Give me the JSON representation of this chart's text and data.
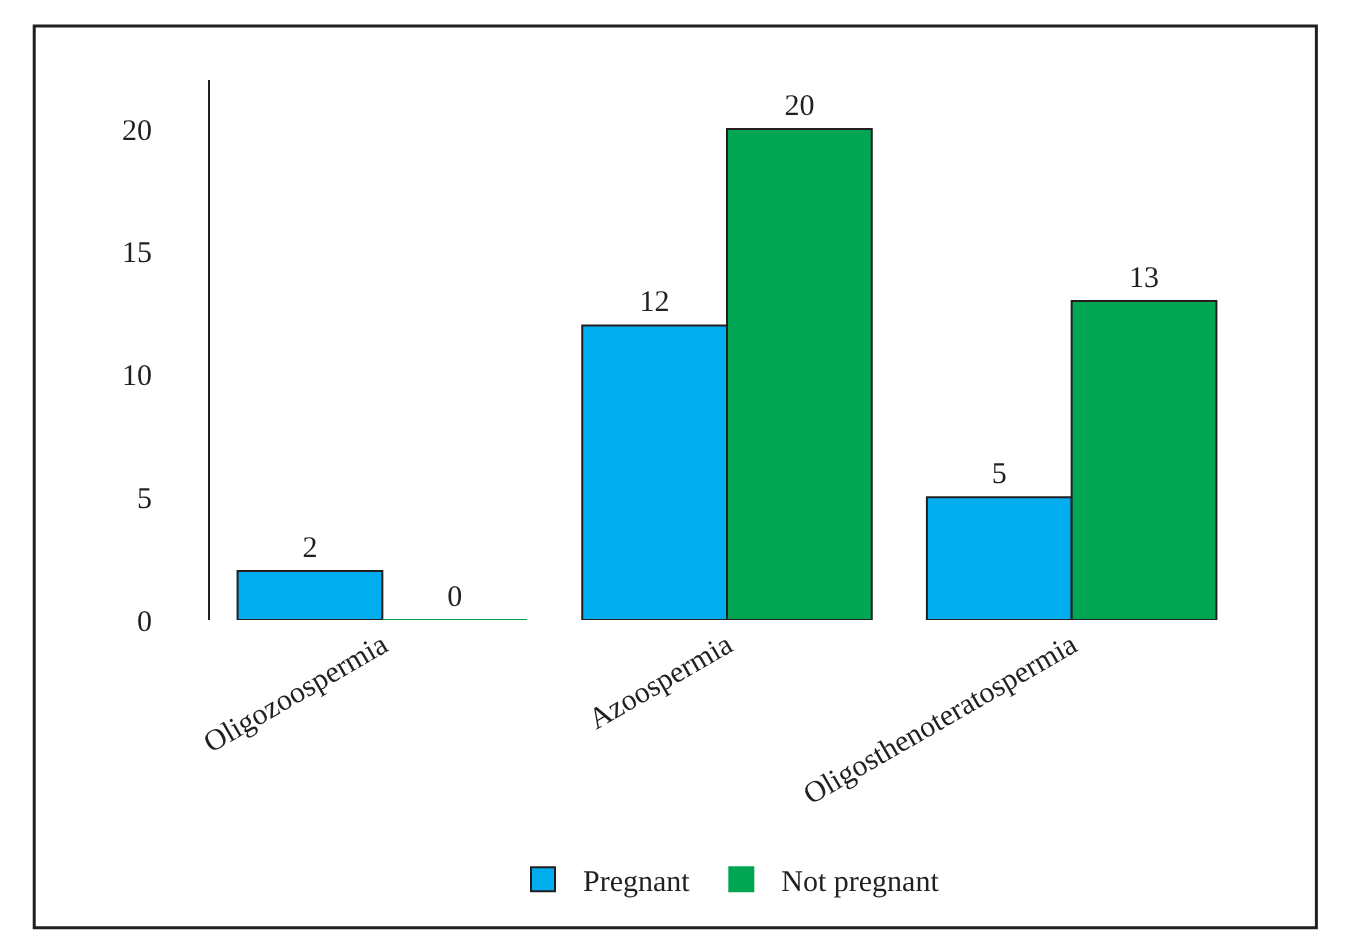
{
  "chart_data": {
    "type": "bar",
    "categories": [
      "Oligozoospermia",
      "Azoospermia",
      "Oligosthenoteratospermia"
    ],
    "series": [
      {
        "name": "Pregnant",
        "color": "#00aeef",
        "values": [
          2,
          12,
          5
        ]
      },
      {
        "name": "Not pregnant",
        "color": "#00a651",
        "values": [
          0,
          20,
          13
        ]
      }
    ],
    "ylim": [
      0,
      22
    ],
    "yticks": [
      0,
      5,
      10,
      15,
      20
    ],
    "legend": "bottom",
    "data_labels": true
  }
}
